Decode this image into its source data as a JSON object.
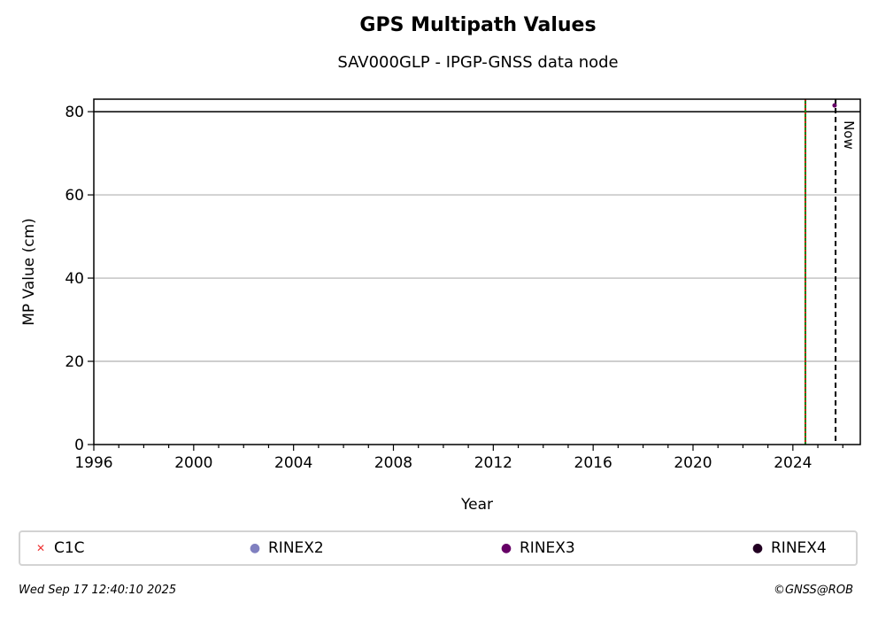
{
  "header": {
    "title": "GPS Multipath Values",
    "subtitle": "SAV000GLP - IPGP-GNSS data node"
  },
  "chart_data": {
    "type": "scatter",
    "title": "GPS Multipath Values",
    "subtitle": "SAV000GLP - IPGP-GNSS data node",
    "xlabel": "Year",
    "ylabel": "MP Value (cm)",
    "xlim": [
      1996,
      2026.7
    ],
    "ylim": [
      0,
      83
    ],
    "x_ticks": [
      1996,
      2000,
      2004,
      2008,
      2012,
      2016,
      2020,
      2024
    ],
    "y_ticks": [
      0,
      20,
      40,
      60,
      80
    ],
    "grid": "horizontal",
    "threshold_line": {
      "y": 80,
      "color": "#000000"
    },
    "vertical_markers": [
      {
        "x": 2024.5,
        "color": "#008000",
        "style": "solid"
      },
      {
        "x": 2024.5,
        "color": "#ff0000",
        "style": "dotted"
      },
      {
        "x": 2025.71,
        "color": "#000000",
        "style": "dashed",
        "label": "Now"
      }
    ],
    "series": [
      {
        "name": "C1C",
        "marker": "x",
        "color": "#ee3333",
        "points": []
      },
      {
        "name": "RINEX2",
        "marker": "dot",
        "color": "#8080c0",
        "points": []
      },
      {
        "name": "RINEX3",
        "marker": "dot",
        "color": "#660066",
        "points": [
          {
            "x": 2025.67,
            "y": 81.5
          }
        ]
      },
      {
        "name": "RINEX4",
        "marker": "dot",
        "color": "#220022",
        "points": []
      }
    ],
    "legend_position": "bottom"
  },
  "footer": {
    "timestamp": "Wed Sep 17 12:40:10 2025",
    "copyright": "©GNSS@ROB"
  }
}
